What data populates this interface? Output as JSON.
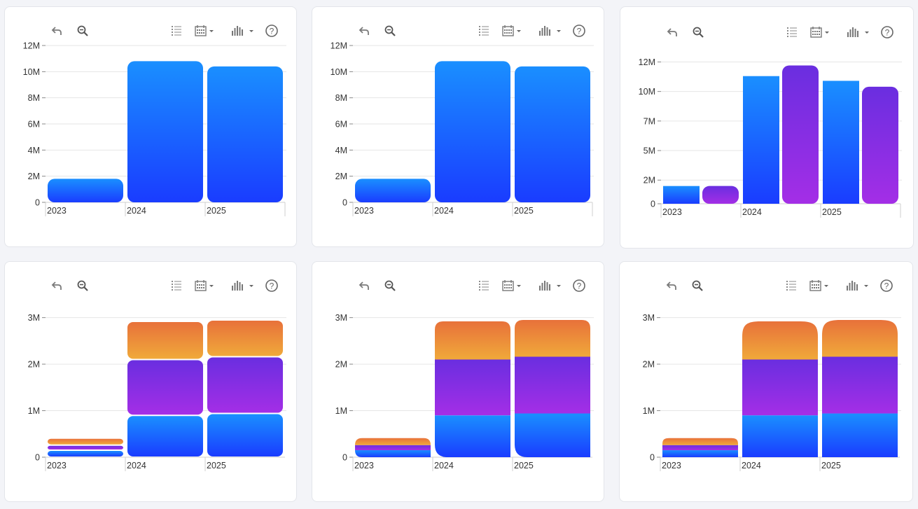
{
  "colors": {
    "blue_top": "#1a8fff",
    "blue_bottom": "#1a3cff",
    "purple_top": "#6a2ee0",
    "purple_bottom": "#a42ee6",
    "orange_top": "#e8713a",
    "orange_bottom": "#f0a93a",
    "grid": "#e6e6e6",
    "icon": "#7a7a7a"
  },
  "toolbar": {
    "icons": [
      "undo-icon",
      "zoom-out-icon",
      "list-icon",
      "calendar-icon",
      "bar-chart-icon",
      "help-icon"
    ]
  },
  "chart_data": [
    {
      "type": "bar",
      "mode": "single",
      "categories": [
        "2023",
        "2024",
        "2025"
      ],
      "series": [
        {
          "values": [
            1.8,
            10.8,
            10.4
          ],
          "color": "blue"
        }
      ],
      "yticks": [
        "0",
        "2M",
        "4M",
        "6M",
        "8M",
        "10M",
        "12M"
      ],
      "ylim": [
        0,
        12
      ],
      "grid": true
    },
    {
      "type": "bar",
      "mode": "single",
      "categories": [
        "2023",
        "2024",
        "2025"
      ],
      "series": [
        {
          "values": [
            1.8,
            10.8,
            10.4
          ],
          "color": "blue"
        }
      ],
      "yticks": [
        "0",
        "2M",
        "4M",
        "6M",
        "8M",
        "10M",
        "12M"
      ],
      "ylim": [
        0,
        12
      ],
      "grid": true
    },
    {
      "type": "bar",
      "mode": "grouped",
      "categories": [
        "2023",
        "2024",
        "2025"
      ],
      "series": [
        {
          "values": [
            1.5,
            10.8,
            10.4
          ],
          "color": "blue"
        },
        {
          "values": [
            1.5,
            11.7,
            9.9
          ],
          "color": "purple"
        }
      ],
      "yticks": [
        "0",
        "2M",
        "5M",
        "7M",
        "10M",
        "12M"
      ],
      "ylim": [
        0,
        12.5
      ],
      "grid": true
    },
    {
      "type": "bar",
      "mode": "stacked",
      "categories": [
        "2023",
        "2024",
        "2025"
      ],
      "series": [
        {
          "values": [
            0.15,
            0.9,
            0.94
          ],
          "color": "blue"
        },
        {
          "values": [
            0.11,
            1.2,
            1.22
          ],
          "color": "purple"
        },
        {
          "values": [
            0.15,
            0.82,
            0.79
          ],
          "color": "orange"
        }
      ],
      "yticks": [
        "0",
        "1M",
        "2M",
        "3M"
      ],
      "ylim": [
        0,
        3.1
      ],
      "grid": true
    },
    {
      "type": "bar",
      "mode": "stacked",
      "categories": [
        "2023",
        "2024",
        "2025"
      ],
      "series": [
        {
          "values": [
            0.15,
            0.9,
            0.94
          ],
          "color": "blue"
        },
        {
          "values": [
            0.11,
            1.2,
            1.22
          ],
          "color": "purple"
        },
        {
          "values": [
            0.15,
            0.82,
            0.79
          ],
          "color": "orange"
        }
      ],
      "yticks": [
        "0",
        "1M",
        "2M",
        "3M"
      ],
      "ylim": [
        0,
        3.1
      ],
      "grid": true
    },
    {
      "type": "bar",
      "mode": "stacked",
      "categories": [
        "2023",
        "2024",
        "2025"
      ],
      "series": [
        {
          "values": [
            0.15,
            0.9,
            0.94
          ],
          "color": "blue"
        },
        {
          "values": [
            0.11,
            1.2,
            1.22
          ],
          "color": "purple"
        },
        {
          "values": [
            0.15,
            0.82,
            0.79
          ],
          "color": "orange"
        }
      ],
      "yticks": [
        "0",
        "1M",
        "2M",
        "3M"
      ],
      "ylim": [
        0,
        3.1
      ],
      "grid": true
    }
  ]
}
